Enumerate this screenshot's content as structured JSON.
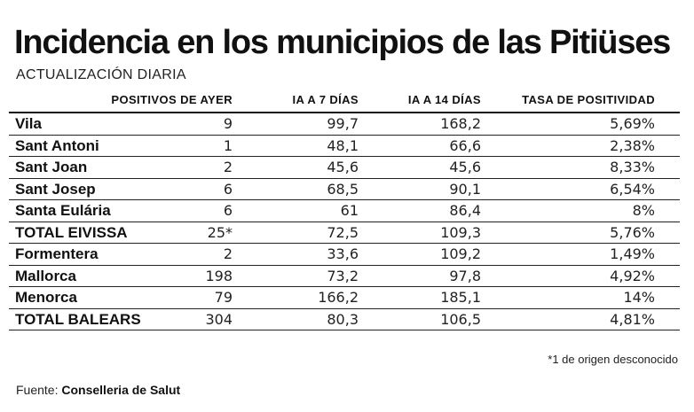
{
  "title": "Incidencia en los municipios de las Pitiüses",
  "subtitle": "ACTUALIZACIÓN DIARIA",
  "columns": [
    "POSITIVOS DE AYER",
    "IA A 7 DÍAS",
    "IA A 14 DÍAS",
    "TASA DE POSITIVIDAD"
  ],
  "rows": [
    {
      "name": "Vila",
      "positivos": "9",
      "ia7": "99,7",
      "ia14": "168,2",
      "tasa": "5,69%"
    },
    {
      "name": "Sant Antoni",
      "positivos": "1",
      "ia7": "48,1",
      "ia14": "66,6",
      "tasa": "2,38%"
    },
    {
      "name": "Sant Joan",
      "positivos": "2",
      "ia7": "45,6",
      "ia14": "45,6",
      "tasa": "8,33%"
    },
    {
      "name": "Sant Josep",
      "positivos": "6",
      "ia7": "68,5",
      "ia14": "90,1",
      "tasa": "6,54%"
    },
    {
      "name": "Santa Eulária",
      "positivos": "6",
      "ia7": "61",
      "ia14": "86,4",
      "tasa": "8%"
    },
    {
      "name": "TOTAL EIVISSA",
      "positivos": "25*",
      "ia7": "72,5",
      "ia14": "109,3",
      "tasa": "5,76%"
    },
    {
      "name": "Formentera",
      "positivos": "2",
      "ia7": "33,6",
      "ia14": "109,2",
      "tasa": "1,49%"
    },
    {
      "name": "Mallorca",
      "positivos": "198",
      "ia7": "73,2",
      "ia14": "97,8",
      "tasa": "4,92%"
    },
    {
      "name": "Menorca",
      "positivos": "79",
      "ia7": "166,2",
      "ia14": "185,1",
      "tasa": "14%"
    },
    {
      "name": "TOTAL BALEARS",
      "positivos": "304",
      "ia7": "80,3",
      "ia14": "106,5",
      "tasa": "4,81%"
    }
  ],
  "note": "*1 de origen desconocido",
  "source_label": "Fuente:",
  "source_name": "Conselleria de Salut"
}
